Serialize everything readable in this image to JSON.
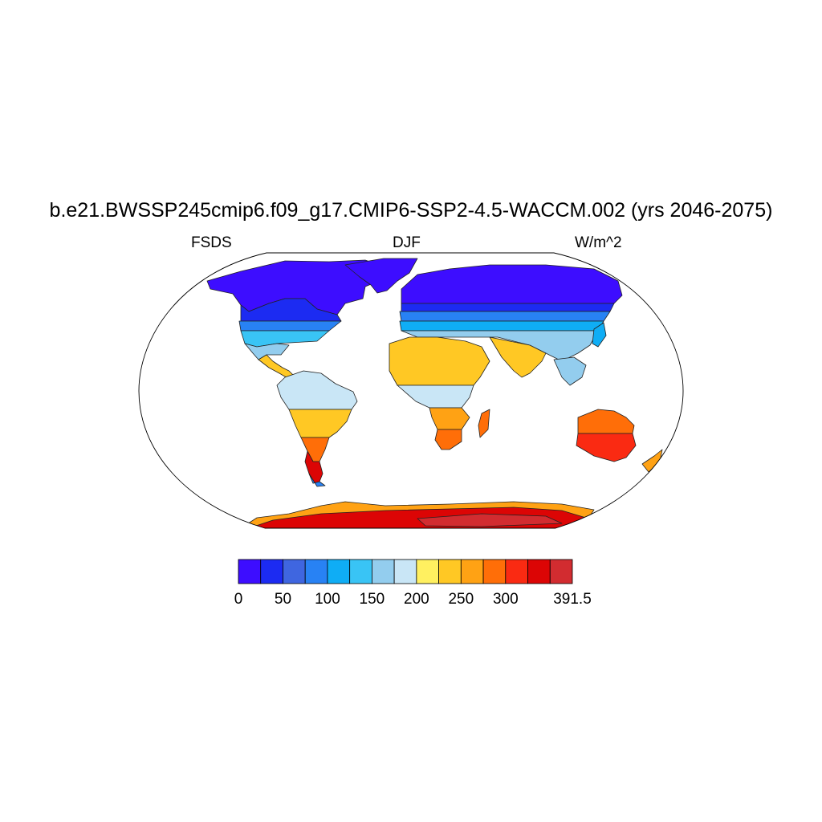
{
  "title": "b.e21.BWSSP245cmip6.f09_g17.CMIP6-SSP2-4.5-WACCM.002 (yrs 2046-2075)",
  "subtitle_left": "FSDS",
  "subtitle_center": "DJF",
  "subtitle_right": "W/m^2",
  "map": {
    "projection": "robinson",
    "field": "surface downwelling shortwave flux, land only",
    "ocean_color": "#ffffff",
    "coastlines": true
  },
  "colorbar": {
    "orientation": "horizontal",
    "levels": [
      0,
      25,
      50,
      75,
      100,
      125,
      150,
      175,
      200,
      225,
      250,
      275,
      300,
      325,
      350,
      391.5
    ],
    "colors": [
      "#3d0dff",
      "#1c2bf2",
      "#3f66e0",
      "#2882f4",
      "#0fadf5",
      "#39c4f5",
      "#93cdee",
      "#c9e6f6",
      "#fff060",
      "#ffc824",
      "#ffa214",
      "#ff6e08",
      "#fa2a12",
      "#dc0505",
      "#d22c30"
    ],
    "tick_labels": [
      {
        "label": "0",
        "value": 0
      },
      {
        "label": "50",
        "value": 50
      },
      {
        "label": "100",
        "value": 100
      },
      {
        "label": "150",
        "value": 150
      },
      {
        "label": "200",
        "value": 200
      },
      {
        "label": "250",
        "value": 250
      },
      {
        "label": "300",
        "value": 300
      },
      {
        "label": "391.5",
        "value": 391.5
      }
    ]
  }
}
